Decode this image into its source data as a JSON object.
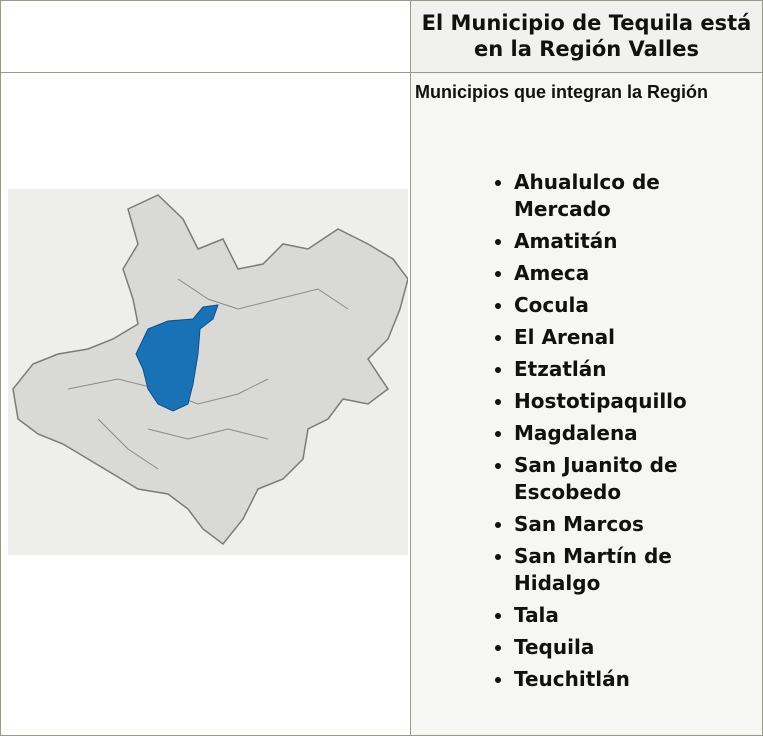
{
  "header": {
    "title": "El Municipio de Tequila está en la Región Valles"
  },
  "panel": {
    "subtitle": "Municipios que integran la Región",
    "municipalities": [
      "Ahualulco de Mercado",
      "Amatitán",
      "Ameca",
      "Cocula",
      "El Arenal",
      "Etzatlán",
      "Hostotipaquillo",
      "Magdalena",
      "San Juanito de Escobedo",
      "San Marcos",
      "San Martín de Hidalgo",
      "Tala",
      "Tequila",
      "Teuchitlán"
    ]
  }
}
